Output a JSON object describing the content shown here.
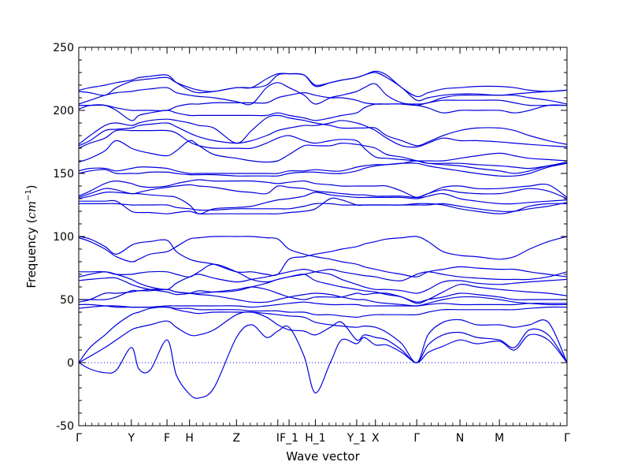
{
  "chart_data": {
    "type": "line",
    "title": "",
    "xlabel": "Wave vector",
    "ylabel_prefix": "Frequency (",
    "ylabel_unit_base": "cm",
    "ylabel_unit_exp": "−1",
    "ylabel_suffix": ")",
    "ylim": [
      -50,
      250
    ],
    "yticks": [
      -50,
      0,
      50,
      100,
      150,
      200,
      250
    ],
    "xlim": [
      0,
      13.0
    ],
    "grid": false,
    "zero_line": true,
    "line_color": "#0000dd",
    "kpoints": [
      {
        "label": "Γ",
        "x": 0.0
      },
      {
        "label": "Y",
        "x": 1.4
      },
      {
        "label": "F",
        "x": 2.35
      },
      {
        "label": "H",
        "x": 2.95
      },
      {
        "label": "Z",
        "x": 4.2
      },
      {
        "label": "I",
        "x": 5.3
      },
      {
        "label": "F_1",
        "x": 5.6
      },
      {
        "label": "H_1",
        "x": 6.3
      },
      {
        "label": "Y_1",
        "x": 7.4
      },
      {
        "label": "X",
        "x": 7.9
      },
      {
        "label": "Γ",
        "x": 9.0
      },
      {
        "label": "N",
        "x": 10.15
      },
      {
        "label": "M",
        "x": 11.2
      },
      {
        "label": "Γ",
        "x": 13.0
      }
    ],
    "bands_x": [
      0.0,
      0.3,
      0.7,
      1.0,
      1.4,
      1.6,
      1.9,
      2.35,
      2.6,
      2.95,
      3.2,
      3.6,
      4.2,
      4.6,
      5.0,
      5.3,
      5.6,
      6.0,
      6.3,
      6.7,
      7.0,
      7.4,
      7.6,
      7.9,
      8.2,
      8.6,
      9.0,
      9.3,
      9.7,
      10.15,
      10.6,
      11.2,
      11.6,
      12.0,
      12.5,
      13.0
    ],
    "series": [
      {
        "values": [
          0,
          -5,
          -8,
          -6,
          12,
          -5,
          -6,
          18,
          -10,
          -25,
          -28,
          -20,
          20,
          30,
          20,
          25,
          28,
          5,
          -24,
          0,
          18,
          15,
          20,
          14,
          14,
          8,
          0,
          8,
          13,
          18,
          15,
          17,
          10,
          22,
          18,
          0
        ]
      },
      {
        "values": [
          0,
          5,
          12,
          18,
          26,
          28,
          30,
          33,
          28,
          22,
          22,
          26,
          38,
          40,
          36,
          30,
          26,
          25,
          22,
          28,
          32,
          18,
          22,
          20,
          18,
          10,
          0,
          14,
          22,
          24,
          20,
          18,
          12,
          26,
          22,
          0
        ]
      },
      {
        "values": [
          0,
          12,
          22,
          30,
          38,
          40,
          43,
          44,
          42,
          40,
          39,
          40,
          40,
          40,
          39,
          38,
          37,
          36,
          32,
          30,
          29,
          28,
          29,
          28,
          24,
          15,
          0,
          22,
          32,
          34,
          30,
          30,
          28,
          30,
          32,
          0
        ]
      },
      {
        "values": [
          43,
          44,
          45,
          45,
          44,
          44,
          44,
          44,
          43,
          43,
          42,
          42,
          42,
          41,
          41,
          41,
          40,
          40,
          38,
          38,
          37,
          36,
          37,
          38,
          38,
          38,
          38,
          40,
          42,
          42,
          42,
          42,
          42,
          43,
          44,
          44
        ]
      },
      {
        "values": [
          46,
          46,
          45,
          44,
          44,
          44,
          44,
          45,
          45,
          45,
          45,
          45,
          45,
          44,
          45,
          46,
          47,
          48,
          47,
          46,
          46,
          46,
          45,
          45,
          45,
          45,
          45,
          46,
          47,
          46,
          46,
          46,
          46,
          47,
          47,
          47
        ]
      },
      {
        "values": [
          48,
          50,
          55,
          55,
          56,
          57,
          57,
          58,
          56,
          55,
          54,
          53,
          50,
          48,
          48,
          50,
          52,
          54,
          55,
          54,
          52,
          50,
          50,
          48,
          47,
          46,
          45,
          47,
          50,
          52,
          52,
          50,
          48,
          47,
          46,
          46
        ]
      },
      {
        "values": [
          50,
          50,
          50,
          52,
          57,
          57,
          58,
          58,
          56,
          55,
          55,
          56,
          58,
          60,
          58,
          55,
          52,
          50,
          52,
          52,
          52,
          55,
          54,
          55,
          55,
          52,
          48,
          50,
          52,
          55,
          54,
          52,
          50,
          50,
          50,
          50
        ]
      },
      {
        "values": [
          65,
          66,
          67,
          67,
          62,
          60,
          58,
          56,
          54,
          55,
          57,
          56,
          57,
          60,
          63,
          66,
          68,
          70,
          65,
          62,
          60,
          58,
          57,
          56,
          54,
          52,
          47,
          50,
          56,
          62,
          60,
          58,
          57,
          56,
          55,
          53
        ]
      },
      {
        "values": [
          68,
          70,
          72,
          70,
          66,
          63,
          60,
          58,
          63,
          68,
          70,
          67,
          64,
          66,
          68,
          70,
          72,
          74,
          72,
          70,
          66,
          62,
          60,
          58,
          58,
          57,
          55,
          58,
          64,
          65,
          63,
          62,
          63,
          64,
          65,
          66
        ]
      },
      {
        "values": [
          72,
          72,
          72,
          70,
          70,
          71,
          72,
          72,
          70,
          68,
          72,
          78,
          72,
          66,
          64,
          66,
          68,
          70,
          72,
          74,
          72,
          70,
          69,
          68,
          66,
          65,
          70,
          72,
          70,
          68,
          67,
          66,
          66,
          66,
          68,
          72
        ]
      },
      {
        "values": [
          99,
          96,
          90,
          84,
          80,
          82,
          86,
          88,
          92,
          98,
          99,
          100,
          100,
          100,
          99,
          98,
          90,
          86,
          84,
          82,
          80,
          78,
          76,
          74,
          72,
          70,
          68,
          72,
          74,
          76,
          75,
          74,
          74,
          72,
          70,
          68
        ]
      },
      {
        "values": [
          100,
          98,
          92,
          86,
          93,
          95,
          96,
          97,
          88,
          82,
          80,
          78,
          72,
          72,
          70,
          70,
          82,
          84,
          86,
          88,
          90,
          92,
          94,
          96,
          98,
          99,
          100,
          96,
          88,
          85,
          84,
          82,
          84,
          90,
          96,
          100
        ]
      },
      {
        "values": [
          126,
          126,
          126,
          126,
          125,
          125,
          125,
          125,
          123,
          122,
          121,
          121,
          122,
          122,
          122,
          122,
          122,
          124,
          126,
          126,
          125,
          125,
          125,
          125,
          125,
          125,
          126,
          126,
          125,
          122,
          120,
          118,
          120,
          124,
          126,
          126
        ]
      },
      {
        "values": [
          128,
          128,
          128,
          128,
          120,
          119,
          119,
          118,
          119,
          120,
          118,
          118,
          118,
          118,
          118,
          118,
          119,
          120,
          122,
          130,
          129,
          125,
          125,
          125,
          125,
          125,
          125,
          125,
          126,
          124,
          122,
          120,
          120,
          122,
          124,
          127
        ]
      },
      {
        "values": [
          130,
          132,
          135,
          135,
          134,
          134,
          133,
          132,
          131,
          125,
          118,
          122,
          123,
          124,
          127,
          129,
          130,
          132,
          135,
          133,
          132,
          131,
          131,
          131,
          131,
          131,
          130,
          132,
          134,
          130,
          128,
          126,
          126,
          127,
          128,
          129
        ]
      },
      {
        "values": [
          131,
          134,
          138,
          137,
          134,
          135,
          137,
          139,
          140,
          141,
          140,
          139,
          136,
          135,
          134,
          140,
          139,
          138,
          136,
          135,
          134,
          133,
          133,
          132,
          132,
          132,
          131,
          134,
          137,
          135,
          134,
          134,
          136,
          138,
          136,
          130
        ]
      },
      {
        "values": [
          132,
          136,
          142,
          144,
          142,
          140,
          139,
          140,
          142,
          144,
          145,
          144,
          144,
          144,
          143,
          142,
          143,
          144,
          142,
          141,
          140,
          140,
          140,
          140,
          140,
          136,
          131,
          134,
          139,
          140,
          138,
          138,
          139,
          140,
          141,
          131
        ]
      },
      {
        "values": [
          150,
          152,
          153,
          150,
          150,
          150,
          151,
          151,
          150,
          149,
          149,
          149,
          148,
          148,
          148,
          148,
          150,
          151,
          151,
          150,
          150,
          152,
          154,
          156,
          157,
          158,
          158,
          156,
          154,
          152,
          150,
          148,
          148,
          150,
          155,
          158
        ]
      },
      {
        "values": [
          152,
          154,
          154,
          152,
          154,
          155,
          155,
          154,
          152,
          150,
          150,
          150,
          150,
          150,
          150,
          150,
          152,
          152,
          153,
          152,
          152,
          155,
          156,
          157,
          157,
          158,
          160,
          158,
          157,
          156,
          154,
          152,
          150,
          152,
          156,
          158
        ]
      },
      {
        "values": [
          159,
          162,
          168,
          176,
          170,
          168,
          166,
          164,
          168,
          176,
          172,
          165,
          162,
          160,
          159,
          160,
          165,
          172,
          172,
          172,
          174,
          173,
          172,
          170,
          165,
          163,
          160,
          158,
          158,
          158,
          157,
          156,
          155,
          154,
          156,
          159
        ]
      },
      {
        "values": [
          170,
          174,
          178,
          184,
          184,
          184,
          184,
          184,
          182,
          175,
          172,
          170,
          170,
          170,
          174,
          178,
          180,
          176,
          174,
          176,
          177,
          176,
          170,
          163,
          162,
          161,
          160,
          160,
          160,
          162,
          164,
          166,
          164,
          162,
          161,
          160
        ]
      },
      {
        "values": [
          172,
          176,
          184,
          185,
          186,
          188,
          189,
          190,
          187,
          182,
          179,
          176,
          174,
          176,
          180,
          184,
          186,
          188,
          188,
          190,
          192,
          190,
          188,
          184,
          178,
          172,
          171,
          174,
          178,
          176,
          176,
          175,
          174,
          173,
          172,
          171
        ]
      },
      {
        "values": [
          173,
          180,
          188,
          190,
          188,
          190,
          192,
          193,
          192,
          190,
          188,
          186,
          174,
          184,
          194,
          196,
          194,
          192,
          190,
          188,
          186,
          186,
          186,
          186,
          180,
          176,
          172,
          175,
          180,
          184,
          186,
          186,
          184,
          180,
          176,
          173
        ]
      },
      {
        "values": [
          201,
          204,
          204,
          200,
          192,
          196,
          198,
          200,
          198,
          196,
          196,
          196,
          196,
          196,
          196,
          198,
          196,
          194,
          192,
          194,
          196,
          198,
          202,
          205,
          205,
          205,
          204,
          202,
          198,
          200,
          200,
          200,
          198,
          200,
          204,
          204
        ]
      },
      {
        "values": [
          204,
          204,
          204,
          202,
          200,
          200,
          200,
          200,
          203,
          205,
          205,
          206,
          206,
          206,
          206,
          210,
          212,
          214,
          212,
          210,
          210,
          208,
          206,
          205,
          205,
          205,
          204,
          206,
          208,
          208,
          208,
          208,
          206,
          204,
          204,
          204
        ]
      },
      {
        "values": [
          205,
          208,
          212,
          214,
          215,
          216,
          217,
          218,
          214,
          212,
          211,
          210,
          207,
          205,
          218,
          222,
          218,
          212,
          205,
          210,
          212,
          215,
          218,
          221,
          212,
          206,
          205,
          206,
          210,
          212,
          212,
          212,
          212,
          210,
          208,
          205
        ]
      },
      {
        "values": [
          215,
          214,
          212,
          218,
          223,
          224,
          225,
          226,
          222,
          218,
          216,
          215,
          218,
          218,
          220,
          228,
          229,
          228,
          219,
          222,
          224,
          226,
          228,
          230,
          226,
          218,
          208,
          210,
          212,
          213,
          213,
          212,
          213,
          214,
          215,
          216
        ]
      },
      {
        "values": [
          216,
          218,
          220,
          222,
          224,
          226,
          227,
          228,
          222,
          216,
          214,
          215,
          218,
          218,
          225,
          229,
          229,
          228,
          220,
          222,
          224,
          226,
          228,
          231,
          228,
          218,
          211,
          214,
          217,
          218,
          219,
          219,
          218,
          216,
          215,
          216
        ]
      }
    ]
  }
}
